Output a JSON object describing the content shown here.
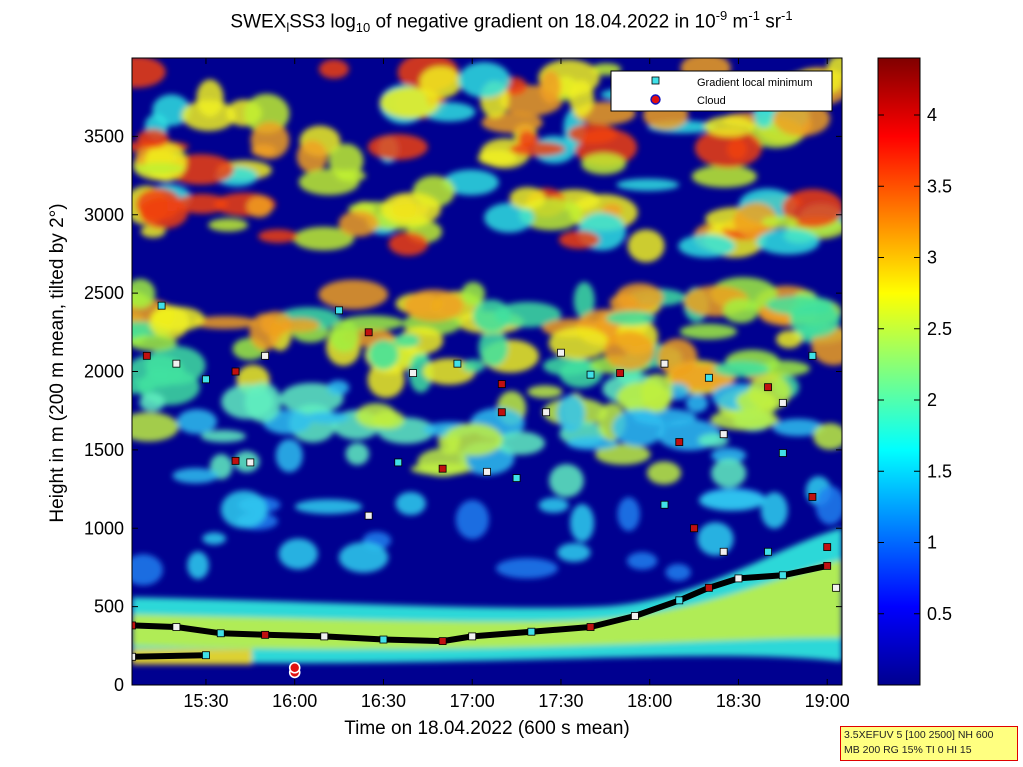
{
  "title": {
    "prefix": "SWEX",
    "sub1": "l",
    "mid1": "SS3 log",
    "sub2": "10",
    "mid2": " of negative gradient on 18.04.2022 in 10",
    "sup1": "-9",
    "mid3": " m",
    "sup2": "-1",
    "mid4": " sr",
    "sup3": "-1"
  },
  "settings_box": {
    "line1": "3.5XEFUV 5 [100 2500] NH 600",
    "line2": "MB 200 RG 15% TI 0 HI 15"
  },
  "colors": {
    "series_gradient": "#40e0e8",
    "series_cloud": "#e01010",
    "settings_bg": "#ffff80",
    "settings_border": "#e00000"
  },
  "chart_data": {
    "type": "heatmap",
    "xlabel": "Time on 18.04.2022 (600 s mean)",
    "ylabel": "Height in m (200 m mean, tilted by 2°)",
    "xlim": [
      "15:05",
      "19:05"
    ],
    "xticks": [
      "15:30",
      "16:00",
      "16:30",
      "17:00",
      "17:30",
      "18:00",
      "18:30",
      "19:00"
    ],
    "ylim": [
      0,
      4000
    ],
    "yticks": [
      0,
      500,
      1000,
      1500,
      2000,
      2500,
      3000,
      3500
    ],
    "colorbar": {
      "range": [
        0,
        4.4
      ],
      "ticks": [
        0.5,
        1,
        1.5,
        2,
        2.5,
        3,
        3.5,
        4
      ],
      "colormap": "jet"
    },
    "legend": {
      "position": "top-right",
      "entries": [
        "Gradient local minimum",
        "Cloud"
      ]
    },
    "series": [
      {
        "name": "Gradient local minimum",
        "points": [
          [
            "15:05",
            380
          ],
          [
            "15:20",
            370
          ],
          [
            "15:35",
            330
          ],
          [
            "15:50",
            320
          ],
          [
            "16:10",
            310
          ],
          [
            "16:30",
            290
          ],
          [
            "16:50",
            280
          ],
          [
            "17:00",
            310
          ],
          [
            "17:20",
            340
          ],
          [
            "17:40",
            370
          ],
          [
            "17:55",
            440
          ],
          [
            "18:10",
            540
          ],
          [
            "18:20",
            620
          ],
          [
            "18:30",
            680
          ],
          [
            "18:45",
            700
          ],
          [
            "19:00",
            760
          ],
          [
            "15:05",
            180
          ],
          [
            "15:30",
            190
          ],
          [
            "15:10",
            2100
          ],
          [
            "15:20",
            2050
          ],
          [
            "15:30",
            1950
          ],
          [
            "15:40",
            2000
          ],
          [
            "15:50",
            2100
          ],
          [
            "16:15",
            2390
          ],
          [
            "16:25",
            2250
          ],
          [
            "16:40",
            1990
          ],
          [
            "16:55",
            2050
          ],
          [
            "17:10",
            1920
          ],
          [
            "17:30",
            2120
          ],
          [
            "17:40",
            1980
          ],
          [
            "17:50",
            1990
          ],
          [
            "18:05",
            2050
          ],
          [
            "18:20",
            1960
          ],
          [
            "18:40",
            1900
          ],
          [
            "18:45",
            1800
          ],
          [
            "18:55",
            2100
          ],
          [
            "15:40",
            1430
          ],
          [
            "15:45",
            1420
          ],
          [
            "16:35",
            1420
          ],
          [
            "16:50",
            1380
          ],
          [
            "17:05",
            1360
          ],
          [
            "17:15",
            1320
          ],
          [
            "18:10",
            1550
          ],
          [
            "18:25",
            1600
          ],
          [
            "18:45",
            1480
          ],
          [
            "18:55",
            1200
          ],
          [
            "16:25",
            1080
          ],
          [
            "18:05",
            1150
          ],
          [
            "18:15",
            1000
          ],
          [
            "18:25",
            850
          ],
          [
            "18:40",
            850
          ],
          [
            "19:00",
            880
          ],
          [
            "19:03",
            620
          ],
          [
            "15:15",
            2420
          ],
          [
            "17:10",
            1740
          ],
          [
            "17:25",
            1740
          ]
        ]
      },
      {
        "name": "Cloud",
        "points": [
          [
            "16:00",
            80
          ],
          [
            "16:00",
            110
          ]
        ]
      }
    ]
  }
}
